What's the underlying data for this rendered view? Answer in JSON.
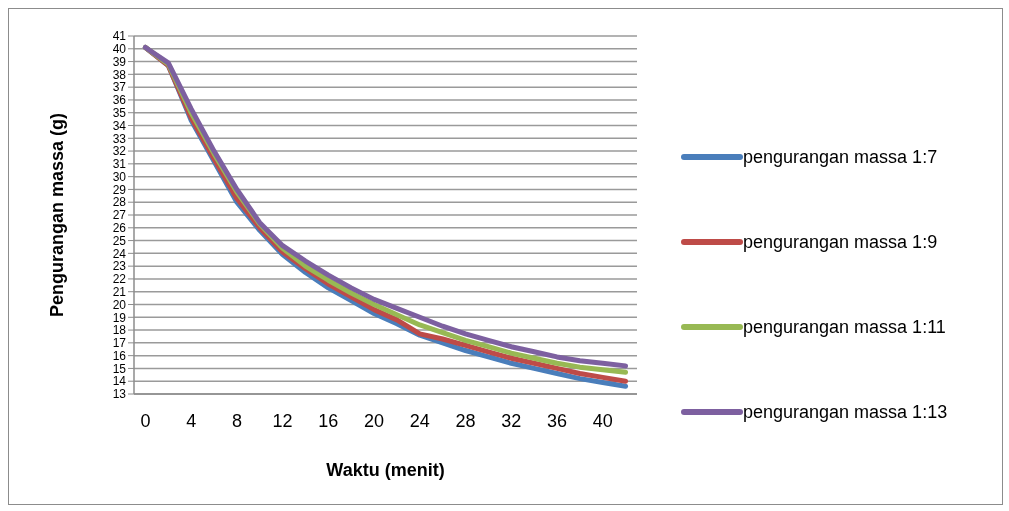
{
  "chart_data": {
    "type": "line",
    "xlabel": "Waktu (menit)",
    "ylabel": "Pengurangan massa (g)",
    "categories": [
      "0",
      null,
      "4",
      null,
      "8",
      null,
      "12",
      null,
      "16",
      null,
      "20",
      null,
      "24",
      null,
      "28",
      null,
      "32",
      null,
      "36",
      null,
      "40",
      null
    ],
    "ylim": [
      13,
      41
    ],
    "yticks": [
      13,
      14,
      15,
      16,
      17,
      18,
      19,
      20,
      21,
      22,
      23,
      24,
      25,
      26,
      27,
      28,
      29,
      30,
      31,
      32,
      33,
      34,
      35,
      36,
      37,
      38,
      39,
      40,
      41
    ],
    "grid": "y",
    "legend": "right",
    "marker": "none",
    "line_style": "solid",
    "series": [
      {
        "name": "pengurangan massa 1:7",
        "color": "#4a7ebb",
        "values": [
          40.1,
          38.7,
          34.4,
          31.2,
          28.0,
          25.8,
          23.9,
          22.5,
          21.3,
          20.3,
          19.3,
          18.5,
          17.6,
          17.0,
          16.4,
          15.9,
          15.4,
          15.0,
          14.6,
          14.2,
          13.9,
          13.6
        ]
      },
      {
        "name": "pengurangan massa 1:9",
        "color": "#be4b48",
        "values": [
          40.1,
          38.7,
          34.6,
          31.4,
          28.3,
          26.0,
          24.1,
          22.8,
          21.6,
          20.6,
          19.6,
          18.8,
          17.7,
          17.3,
          16.8,
          16.3,
          15.8,
          15.4,
          15.0,
          14.6,
          14.3,
          14.0
        ]
      },
      {
        "name": "pengurangan massa 1:11",
        "color": "#98b954",
        "values": [
          40.1,
          38.8,
          35.0,
          31.8,
          28.8,
          26.3,
          24.4,
          23.0,
          21.9,
          20.9,
          20.0,
          19.2,
          18.4,
          17.8,
          17.2,
          16.7,
          16.2,
          15.8,
          15.4,
          15.1,
          14.9,
          14.7
        ]
      },
      {
        "name": "pengurangan massa 1:13",
        "color": "#7d60a0",
        "values": [
          40.1,
          38.9,
          35.3,
          32.0,
          29.0,
          26.4,
          24.6,
          23.4,
          22.3,
          21.3,
          20.4,
          19.7,
          19.0,
          18.3,
          17.7,
          17.2,
          16.7,
          16.3,
          15.9,
          15.6,
          15.4,
          15.2
        ]
      }
    ]
  }
}
